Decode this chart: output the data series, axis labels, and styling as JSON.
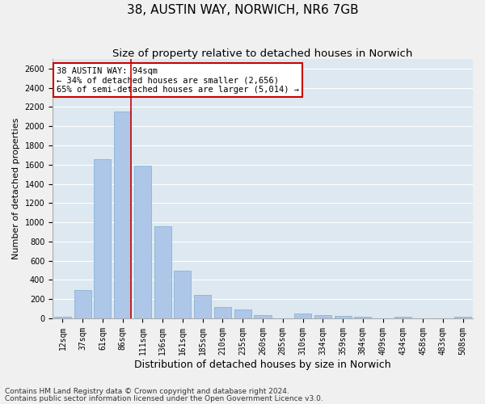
{
  "title": "38, AUSTIN WAY, NORWICH, NR6 7GB",
  "subtitle": "Size of property relative to detached houses in Norwich",
  "xlabel": "Distribution of detached houses by size in Norwich",
  "ylabel": "Number of detached properties",
  "categories": [
    "12sqm",
    "37sqm",
    "61sqm",
    "86sqm",
    "111sqm",
    "136sqm",
    "161sqm",
    "185sqm",
    "210sqm",
    "235sqm",
    "260sqm",
    "285sqm",
    "310sqm",
    "334sqm",
    "359sqm",
    "384sqm",
    "409sqm",
    "434sqm",
    "458sqm",
    "483sqm",
    "508sqm"
  ],
  "values": [
    20,
    290,
    1660,
    2150,
    1590,
    960,
    500,
    245,
    120,
    95,
    35,
    0,
    50,
    30,
    25,
    20,
    0,
    20,
    0,
    0,
    20
  ],
  "bar_color": "#aec6e8",
  "bar_edge_color": "#7aafd4",
  "vline_color": "#cc0000",
  "annotation_text": "38 AUSTIN WAY: 94sqm\n← 34% of detached houses are smaller (2,656)\n65% of semi-detached houses are larger (5,014) →",
  "annotation_box_color": "#ffffff",
  "annotation_box_edge_color": "#cc0000",
  "ylim": [
    0,
    2700
  ],
  "yticks": [
    0,
    200,
    400,
    600,
    800,
    1000,
    1200,
    1400,
    1600,
    1800,
    2000,
    2200,
    2400,
    2600
  ],
  "footnote1": "Contains HM Land Registry data © Crown copyright and database right 2024.",
  "footnote2": "Contains public sector information licensed under the Open Government Licence v3.0.",
  "fig_bg_color": "#f0f0f0",
  "plot_bg_color": "#dde8f0",
  "title_fontsize": 11,
  "subtitle_fontsize": 9.5,
  "xlabel_fontsize": 9,
  "ylabel_fontsize": 8,
  "tick_fontsize": 7,
  "footnote_fontsize": 6.5,
  "annotation_fontsize": 7.5
}
